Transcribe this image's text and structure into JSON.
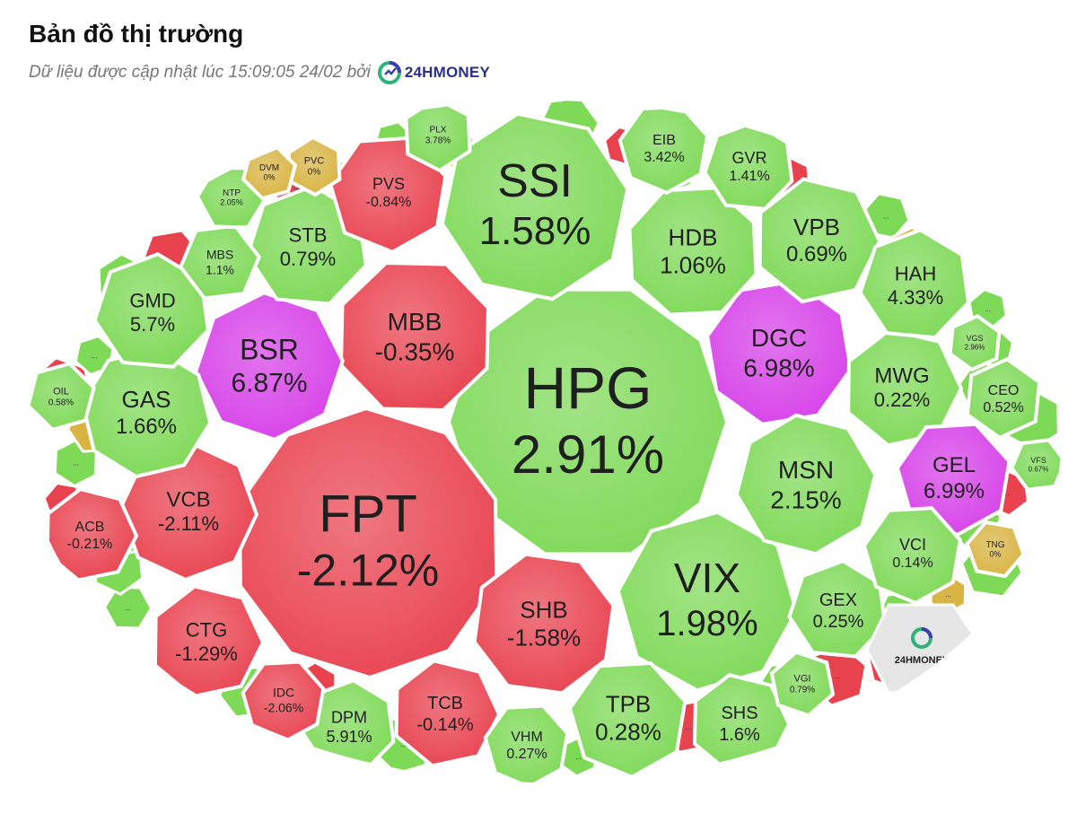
{
  "header": {
    "title": "Bản đồ thị trường",
    "updated_text": "Dữ liệu được cập nhật lúc 15:09:05 24/02 bởi",
    "brand": "24HMONEY"
  },
  "colors": {
    "up": "#7ed957",
    "down": "#e8424f",
    "ceiling": "#d640e8",
    "flat": "#d9b443",
    "watermark": "#e6e6e6",
    "border": "#ffffff"
  },
  "tiles": [
    {
      "ticker": "HPG",
      "change": "2.91%",
      "status": "up"
    },
    {
      "ticker": "FPT",
      "change": "-2.12%",
      "status": "down"
    },
    {
      "ticker": "SSI",
      "change": "1.58%",
      "status": "up"
    },
    {
      "ticker": "VIX",
      "change": "1.98%",
      "status": "up"
    },
    {
      "ticker": "MBB",
      "change": "-0.35%",
      "status": "down"
    },
    {
      "ticker": "BSR",
      "change": "6.87%",
      "status": "ceiling"
    },
    {
      "ticker": "DGC",
      "change": "6.98%",
      "status": "ceiling"
    },
    {
      "ticker": "SHB",
      "change": "-1.58%",
      "status": "down"
    },
    {
      "ticker": "VCB",
      "change": "-2.11%",
      "status": "down"
    },
    {
      "ticker": "HDB",
      "change": "1.06%",
      "status": "up"
    },
    {
      "ticker": "MSN",
      "change": "2.15%",
      "status": "up"
    },
    {
      "ticker": "GAS",
      "change": "1.66%",
      "status": "up"
    },
    {
      "ticker": "VPB",
      "change": "0.69%",
      "status": "up"
    },
    {
      "ticker": "STB",
      "change": "0.79%",
      "status": "up"
    },
    {
      "ticker": "PVS",
      "change": "-0.84%",
      "status": "down"
    },
    {
      "ticker": "MWG",
      "change": "0.22%",
      "status": "up"
    },
    {
      "ticker": "GMD",
      "change": "5.7%",
      "status": "up"
    },
    {
      "ticker": "TPB",
      "change": "0.28%",
      "status": "up"
    },
    {
      "ticker": "CTG",
      "change": "-1.29%",
      "status": "down"
    },
    {
      "ticker": "HAH",
      "change": "4.33%",
      "status": "up"
    },
    {
      "ticker": "GEL",
      "change": "6.99%",
      "status": "ceiling"
    },
    {
      "ticker": "TCB",
      "change": "-0.14%",
      "status": "down"
    },
    {
      "ticker": "GEX",
      "change": "0.25%",
      "status": "up"
    },
    {
      "ticker": "VCI",
      "change": "0.14%",
      "status": "up"
    },
    {
      "ticker": "SHS",
      "change": "1.6%",
      "status": "up"
    },
    {
      "ticker": "DPM",
      "change": "5.91%",
      "status": "up"
    },
    {
      "ticker": "VHM",
      "change": "0.27%",
      "status": "up"
    },
    {
      "ticker": "ACB",
      "change": "-0.21%",
      "status": "down"
    },
    {
      "ticker": "GVR",
      "change": "1.41%",
      "status": "up"
    },
    {
      "ticker": "EIB",
      "change": "3.42%",
      "status": "up"
    },
    {
      "ticker": "CEO",
      "change": "0.52%",
      "status": "up"
    },
    {
      "ticker": "MBS",
      "change": "1.1%",
      "status": "up"
    },
    {
      "ticker": "IDC",
      "change": "-2.06%",
      "status": "down"
    },
    {
      "ticker": "PLX",
      "change": "3.78%",
      "status": "up"
    },
    {
      "ticker": "OIL",
      "change": "0.58%",
      "status": "up"
    },
    {
      "ticker": "NTP",
      "change": "2.05%",
      "status": "up"
    },
    {
      "ticker": "VGI",
      "change": "0.79%",
      "status": "up"
    },
    {
      "ticker": "VGS",
      "change": "2.96%",
      "status": "up"
    },
    {
      "ticker": "VFS",
      "change": "0.67%",
      "status": "up"
    },
    {
      "ticker": "TNG",
      "change": "0%",
      "status": "flat"
    },
    {
      "ticker": "PVC",
      "change": "0%",
      "status": "flat"
    },
    {
      "ticker": "DVM",
      "change": "0%",
      "status": "flat"
    }
  ],
  "small_tiles": {
    "label": "...",
    "statuses": [
      "up",
      "down",
      "up",
      "up",
      "flat",
      "up",
      "down",
      "down",
      "up",
      "up",
      "down",
      "up",
      "up",
      "down",
      "up",
      "up",
      "flat",
      "down",
      "up",
      "up",
      "down",
      "up",
      "up",
      "up",
      "down",
      "up",
      "flat",
      "down",
      "up",
      "up",
      "up",
      "down",
      "up",
      "up",
      "down",
      "up",
      "up",
      "flat",
      "up",
      "up",
      "down",
      "up",
      "up",
      "down",
      "up",
      "up",
      "flat",
      "down",
      "up",
      "up",
      "up",
      "up"
    ]
  },
  "watermark": {
    "brand": "24HMONEY"
  }
}
